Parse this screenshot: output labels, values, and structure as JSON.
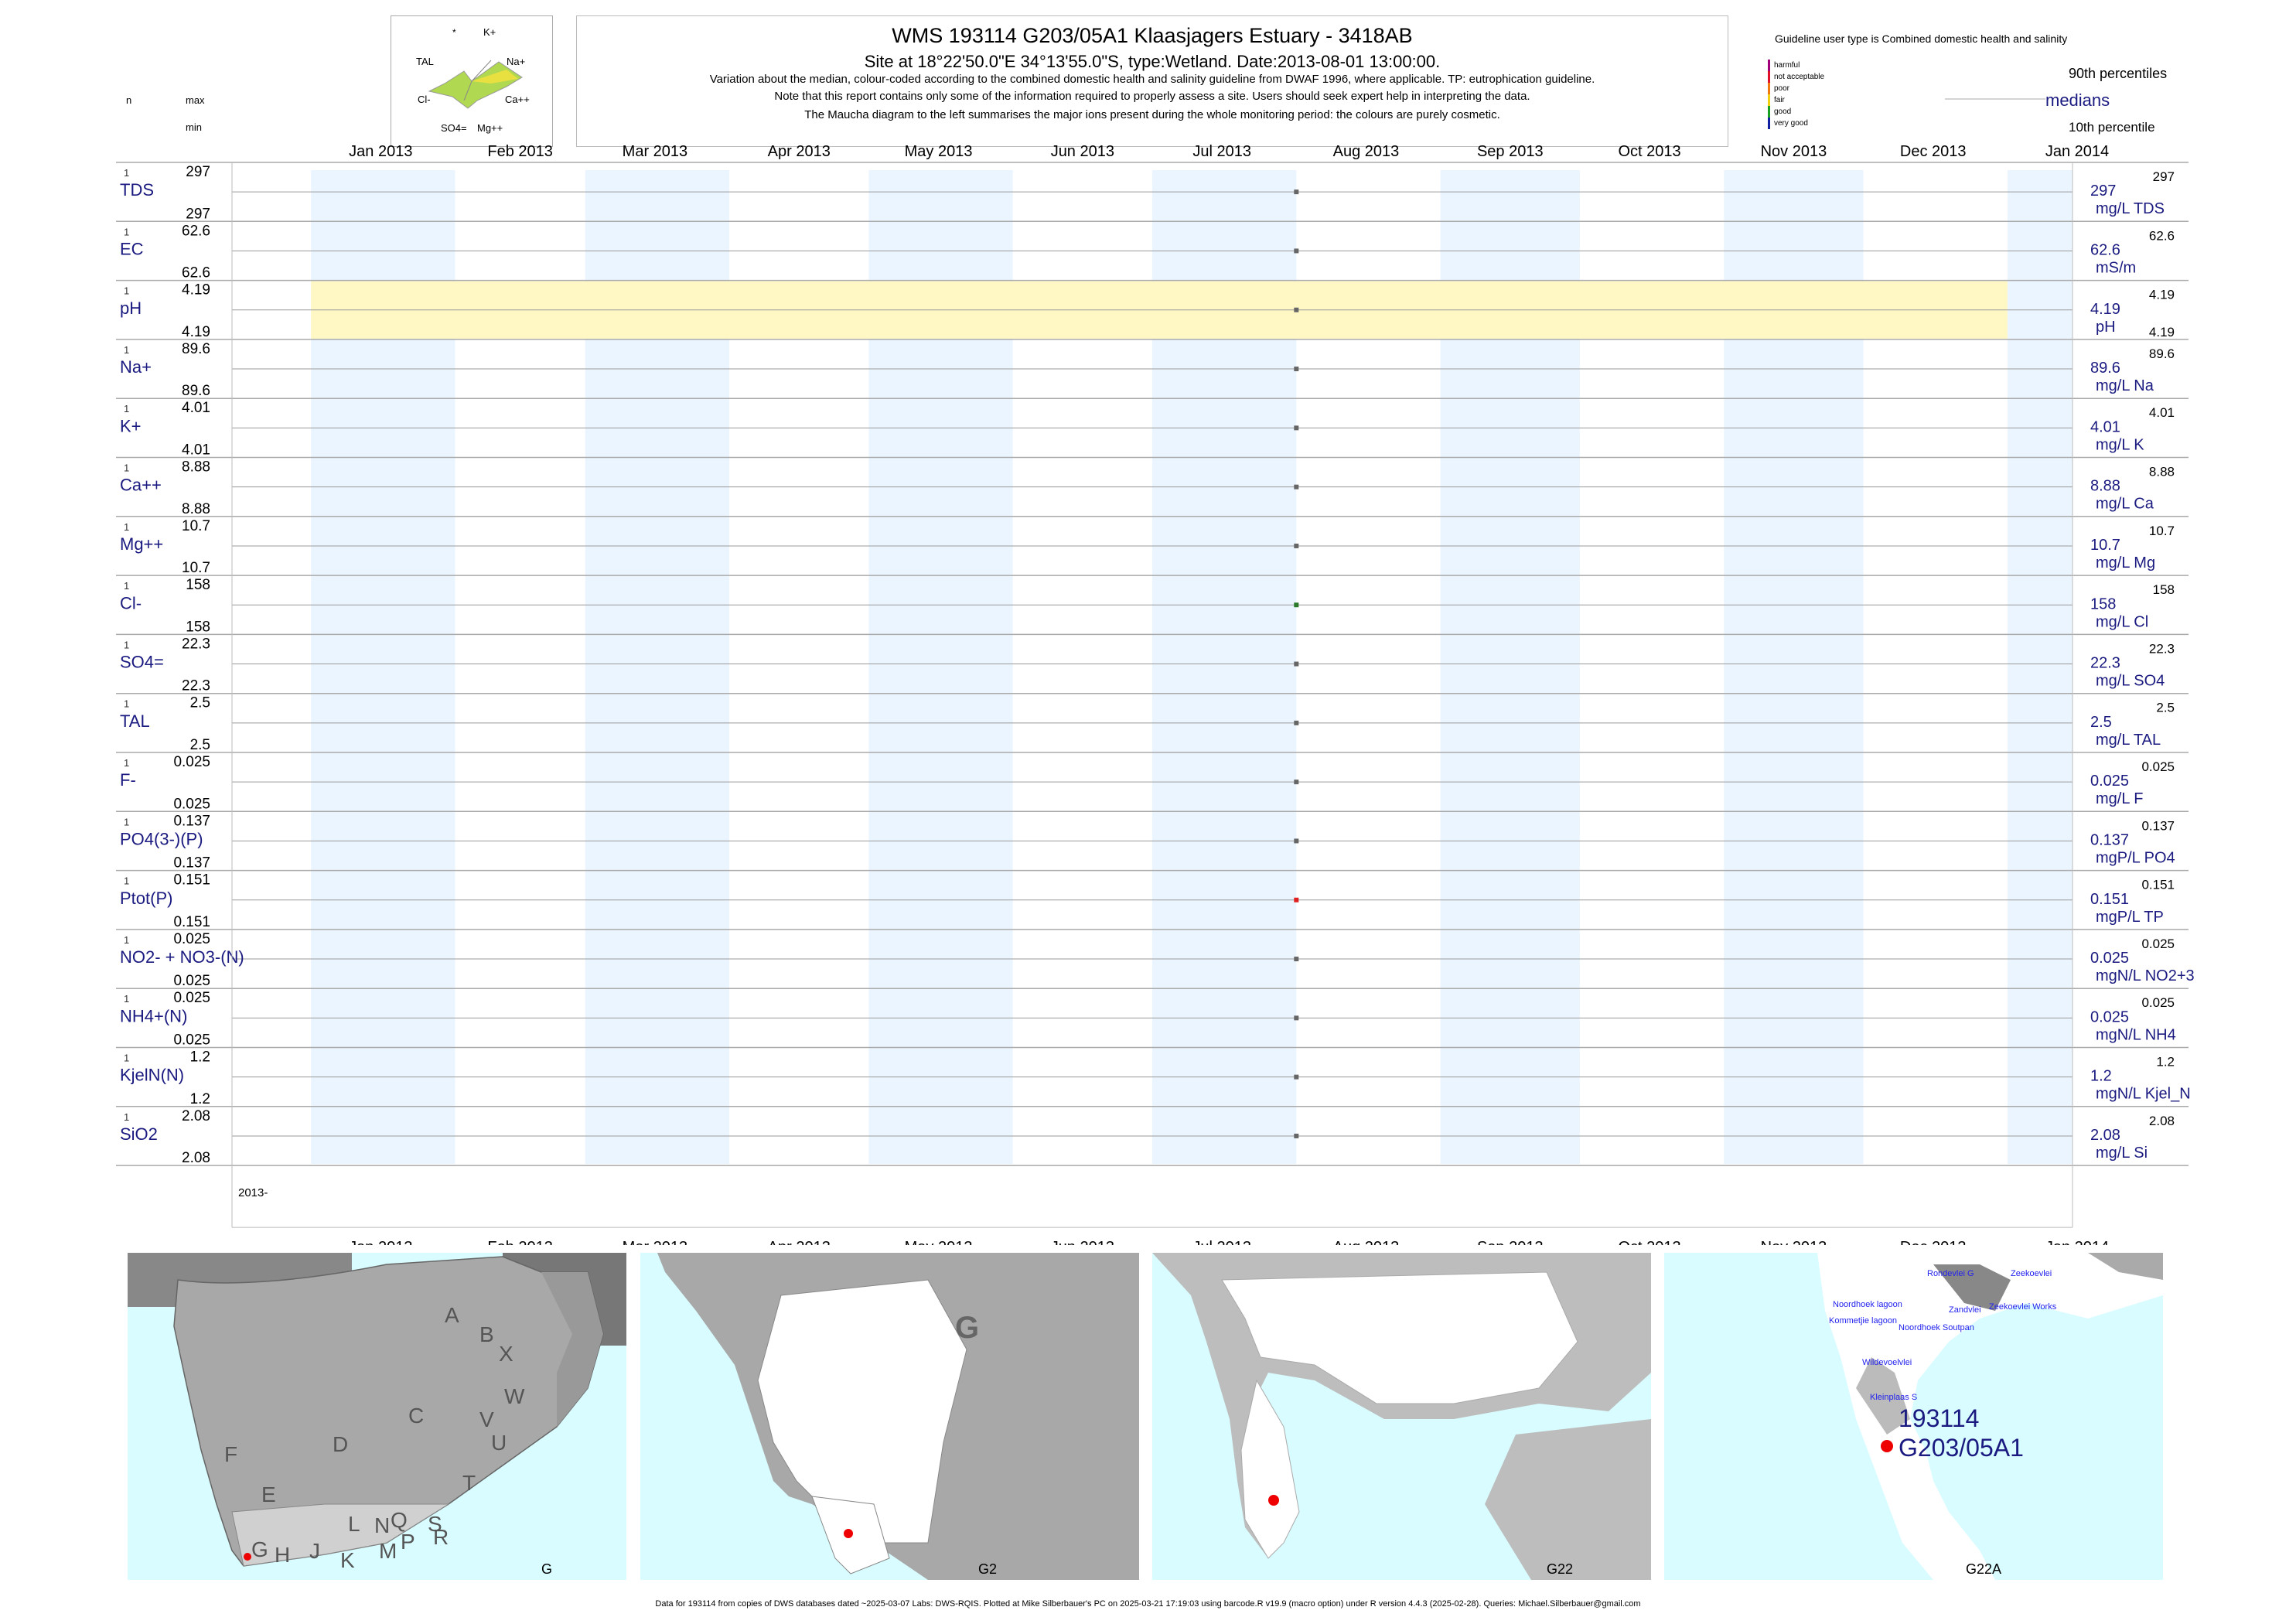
{
  "title": "WMS 193114 G203/05A1 Klaasjagers Estuary - 3418AB",
  "site_line": "Site at 18°22'50.0\"E 34°13'55.0\"S, type:Wetland. Date:2013-08-01 13:00:00.",
  "notes": [
    "Variation about the median,  colour-coded according to the combined domestic health and salinity guideline from DWAF 1996, where applicable. TP: eutrophication guideline.",
    "Note that this report contains only some of the information required to properly assess a site. Users should seek expert help in interpreting the data.",
    "The Maucha diagram to the left summarises the major ions present during the whole monitoring period: the colours are purely cosmetic."
  ],
  "guideline_title": "Guideline user type is Combined domestic health and salinity",
  "legend_levels": [
    {
      "label": "harmful",
      "color": "#a0007a"
    },
    {
      "label": "not acceptable",
      "color": "#e0102a"
    },
    {
      "label": "poor",
      "color": "#f07a10"
    },
    {
      "label": "fair",
      "color": "#f0d010"
    },
    {
      "label": "good",
      "color": "#18a020"
    },
    {
      "label": "very good",
      "color": "#1020a0"
    }
  ],
  "legend_right": {
    "p90": "90th percentiles",
    "median": "medians",
    "p10": "10th percentile"
  },
  "left_header": {
    "n": "n",
    "max": "max",
    "min": "min"
  },
  "maucha": {
    "ions": [
      "*",
      "K+",
      "Na+",
      "Ca++",
      "Mg++",
      "SO4=",
      "Cl-",
      "TAL"
    ]
  },
  "chart_data": {
    "type": "scatter",
    "x_ticks": [
      "Jan 2013",
      "Feb 2013",
      "Mar 2013",
      "Apr 2013",
      "May 2013",
      "Jun 2013",
      "Jul 2013",
      "Aug 2013",
      "Sep 2013",
      "Oct 2013",
      "Nov 2013",
      "Dec 2013",
      "Jan 2014"
    ],
    "x_range": [
      "2012-12-15",
      "2014-01-15"
    ],
    "sample_date": "2013-08-01",
    "bottom_axis_label": "2013-",
    "series": [
      {
        "name": "TDS",
        "n": "1",
        "max": "297",
        "min": "297",
        "value": "297",
        "unit": "mg/L TDS",
        "p90": "297",
        "p10": "",
        "color": "#666666",
        "highlight": false
      },
      {
        "name": "EC",
        "n": "1",
        "max": "62.6",
        "min": "62.6",
        "value": "62.6",
        "unit": "mS/m",
        "p90": "62.6",
        "p10": "",
        "color": "#666666",
        "highlight": false
      },
      {
        "name": "pH",
        "n": "1",
        "max": "4.19",
        "min": "4.19",
        "value": "4.19",
        "unit": "pH",
        "p90": "4.19",
        "p10": "4.19",
        "color": "#666666",
        "highlight": true
      },
      {
        "name": "Na+",
        "n": "1",
        "max": "89.6",
        "min": "89.6",
        "value": "89.6",
        "unit": "mg/L Na",
        "p90": "89.6",
        "p10": "",
        "color": "#666666",
        "highlight": false
      },
      {
        "name": "K+",
        "n": "1",
        "max": "4.01",
        "min": "4.01",
        "value": "4.01",
        "unit": "mg/L K",
        "p90": "4.01",
        "p10": "",
        "color": "#666666",
        "highlight": false
      },
      {
        "name": "Ca++",
        "n": "1",
        "max": "8.88",
        "min": "8.88",
        "value": "8.88",
        "unit": "mg/L Ca",
        "p90": "8.88",
        "p10": "",
        "color": "#666666",
        "highlight": false
      },
      {
        "name": "Mg++",
        "n": "1",
        "max": "10.7",
        "min": "10.7",
        "value": "10.7",
        "unit": "mg/L Mg",
        "p90": "10.7",
        "p10": "",
        "color": "#666666",
        "highlight": false
      },
      {
        "name": "Cl-",
        "n": "1",
        "max": "158",
        "min": "158",
        "value": "158",
        "unit": "mg/L Cl",
        "p90": "158",
        "p10": "",
        "color": "#2a7a2a",
        "highlight": false
      },
      {
        "name": "SO4=",
        "n": "1",
        "max": "22.3",
        "min": "22.3",
        "value": "22.3",
        "unit": "mg/L SO4",
        "p90": "22.3",
        "p10": "",
        "color": "#666666",
        "highlight": false
      },
      {
        "name": "TAL",
        "n": "1",
        "max": "2.5",
        "min": "2.5",
        "value": "2.5",
        "unit": "mg/L TAL",
        "p90": "2.5",
        "p10": "",
        "color": "#666666",
        "highlight": false
      },
      {
        "name": "F-",
        "n": "1",
        "max": "0.025",
        "min": "0.025",
        "value": "0.025",
        "unit": "mg/L F",
        "p90": "0.025",
        "p10": "",
        "color": "#666666",
        "highlight": false
      },
      {
        "name": "PO4(3-)(P)",
        "n": "1",
        "max": "0.137",
        "min": "0.137",
        "value": "0.137",
        "unit": "mgP/L PO4",
        "p90": "0.137",
        "p10": "",
        "color": "#666666",
        "highlight": false
      },
      {
        "name": "Ptot(P)",
        "n": "1",
        "max": "0.151",
        "min": "0.151",
        "value": "0.151",
        "unit": "mgP/L TP",
        "p90": "0.151",
        "p10": "",
        "color": "#e02020",
        "highlight": false
      },
      {
        "name": "NO2- + NO3-(N)",
        "n": "1",
        "max": "0.025",
        "min": "0.025",
        "value": "0.025",
        "unit": "mgN/L NO2+3",
        "p90": "0.025",
        "p10": "",
        "color": "#666666",
        "highlight": false
      },
      {
        "name": "NH4+(N)",
        "n": "1",
        "max": "0.025",
        "min": "0.025",
        "value": "0.025",
        "unit": "mgN/L NH4",
        "p90": "0.025",
        "p10": "",
        "color": "#666666",
        "highlight": false
      },
      {
        "name": "KjelN(N)",
        "n": "1",
        "max": "1.2",
        "min": "1.2",
        "value": "1.2",
        "unit": "mgN/L Kjel_N",
        "p90": "1.2",
        "p10": "",
        "color": "#666666",
        "highlight": false
      },
      {
        "name": "SiO2",
        "n": "1",
        "max": "2.08",
        "min": "2.08",
        "value": "2.08",
        "unit": "mg/L Si",
        "p90": "2.08",
        "p10": "",
        "color": "#666666",
        "highlight": false
      }
    ]
  },
  "maps": [
    {
      "caption": "G",
      "letters": [
        "A",
        "B",
        "X",
        "W",
        "C",
        "V",
        "U",
        "D",
        "T",
        "F",
        "E",
        "L",
        "N",
        "Q",
        "S",
        "G",
        "H",
        "J",
        "K",
        "M",
        "P",
        "R"
      ]
    },
    {
      "caption": "G2",
      "letters": [
        "G"
      ]
    },
    {
      "caption": "G22",
      "letters": []
    },
    {
      "caption": "G22A",
      "places": [
        "Rondevlei G",
        "Zeekoevlei",
        "Zandvlei",
        "Zeekoevlei Works",
        "Noordhoek lagoon",
        "Kommetjie lagoon",
        "Noordhoek Soutpan",
        "Wildevoelvlei",
        "Kleinplaas S"
      ],
      "site_id": "193114",
      "site_code": "G203/05A1"
    }
  ],
  "footer": "Data for 193114 from copies of DWS databases dated ~2025-03-07 Labs: DWS-RQIS. Plotted at Mike Silberbauer's PC on 2025-03-21 17:19:03 using barcode.R v19.9 (macro option) under R version 4.4.3 (2025-02-28). Queries: Michael.Silberbauer@gmail.com"
}
